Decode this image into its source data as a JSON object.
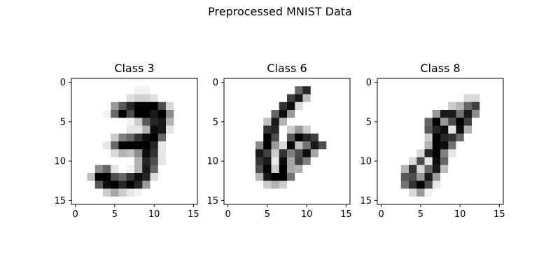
{
  "chart_data": {
    "type": "heatmap",
    "title": "Preprocessed MNIST Data",
    "colormap": "gray_r",
    "value_range": [
      0,
      1
    ],
    "grid": false,
    "xticks": [
      0,
      5,
      10,
      15
    ],
    "yticks": [
      0,
      5,
      10,
      15
    ],
    "panels": [
      {
        "title": "Class 3",
        "pixels": [
          [
            0,
            0,
            0,
            0,
            0,
            0,
            0,
            0,
            0,
            0,
            0,
            0,
            0,
            0,
            0,
            0
          ],
          [
            0,
            0,
            0,
            0,
            0,
            0,
            0,
            0,
            0.05,
            0.05,
            0,
            0,
            0,
            0,
            0,
            0
          ],
          [
            0,
            0,
            0,
            0,
            0,
            0,
            0,
            0.12,
            0.18,
            0.18,
            0.12,
            0,
            0,
            0,
            0,
            0
          ],
          [
            0,
            0,
            0,
            0,
            0,
            0.4,
            0.65,
            0.85,
            1,
            1,
            1,
            0.7,
            0.15,
            0,
            0,
            0
          ],
          [
            0,
            0,
            0,
            0,
            0.05,
            0.6,
            1,
            0.7,
            1,
            1,
            0.9,
            1,
            0.45,
            0,
            0,
            0
          ],
          [
            0,
            0,
            0,
            0,
            0,
            0,
            0,
            0.05,
            0.2,
            0.65,
            0.85,
            0.9,
            0.3,
            0,
            0,
            0
          ],
          [
            0,
            0,
            0,
            0,
            0,
            0,
            0,
            0.1,
            0.1,
            0.3,
            0.95,
            0.9,
            0.1,
            0,
            0,
            0
          ],
          [
            0,
            0,
            0,
            0,
            0,
            0.2,
            0.5,
            0.6,
            0.8,
            0.95,
            1,
            0.6,
            0,
            0,
            0,
            0
          ],
          [
            0,
            0,
            0,
            0,
            0.1,
            0.6,
            1,
            1,
            1,
            1,
            0.85,
            0.1,
            0,
            0,
            0,
            0
          ],
          [
            0,
            0,
            0,
            0,
            0,
            0.15,
            0.3,
            0.25,
            0.45,
            0.95,
            0.8,
            0.1,
            0,
            0,
            0,
            0
          ],
          [
            0,
            0,
            0,
            0,
            0,
            0,
            0,
            0,
            0.3,
            0.85,
            0.7,
            0.1,
            0,
            0,
            0,
            0
          ],
          [
            0,
            0,
            0,
            0.45,
            0.6,
            0.1,
            0,
            0.05,
            0.3,
            0.9,
            0.6,
            0,
            0,
            0,
            0,
            0
          ],
          [
            0,
            0,
            0.25,
            1,
            1,
            0.7,
            0.6,
            0.8,
            0.95,
            0.85,
            0.15,
            0,
            0,
            0,
            0,
            0
          ],
          [
            0,
            0,
            0,
            0.65,
            0.95,
            1,
            0.85,
            1,
            0.85,
            0.4,
            0,
            0,
            0,
            0,
            0,
            0
          ],
          [
            0,
            0,
            0,
            0,
            0.2,
            0.35,
            0.2,
            0.1,
            0.05,
            0,
            0,
            0,
            0,
            0,
            0,
            0
          ],
          [
            0,
            0,
            0,
            0,
            0,
            0,
            0,
            0,
            0,
            0,
            0,
            0,
            0,
            0,
            0,
            0
          ]
        ]
      },
      {
        "title": "Class 6",
        "pixels": [
          [
            0,
            0,
            0,
            0,
            0,
            0,
            0,
            0,
            0,
            0,
            0,
            0,
            0,
            0,
            0,
            0
          ],
          [
            0,
            0,
            0,
            0,
            0,
            0,
            0,
            0,
            0,
            0.6,
            0.85,
            0,
            0,
            0,
            0,
            0
          ],
          [
            0,
            0,
            0,
            0,
            0,
            0,
            0,
            0,
            0.75,
            0.9,
            0.25,
            0,
            0,
            0,
            0,
            0
          ],
          [
            0,
            0,
            0,
            0,
            0,
            0,
            0,
            0.8,
            0.95,
            0.15,
            0,
            0,
            0,
            0,
            0,
            0
          ],
          [
            0,
            0,
            0,
            0,
            0,
            0,
            0.6,
            0.95,
            0.4,
            0,
            0,
            0,
            0,
            0,
            0,
            0
          ],
          [
            0,
            0,
            0,
            0,
            0,
            0.25,
            0.9,
            0.3,
            0,
            0,
            0,
            0,
            0,
            0,
            0,
            0
          ],
          [
            0,
            0,
            0,
            0,
            0,
            0.8,
            0.85,
            0,
            0.2,
            0.4,
            0.2,
            0,
            0,
            0,
            0,
            0
          ],
          [
            0,
            0,
            0,
            0,
            0,
            1,
            0.7,
            0,
            0.65,
            1,
            0.85,
            0.75,
            0,
            0,
            0,
            0
          ],
          [
            0,
            0,
            0,
            0,
            0.45,
            1,
            0.4,
            0.15,
            1,
            0.25,
            0.55,
            0.9,
            0.7,
            0,
            0,
            0
          ],
          [
            0,
            0,
            0,
            0,
            0.9,
            0.75,
            0.2,
            0.8,
            0.5,
            0.7,
            0.95,
            0.35,
            0,
            0,
            0,
            0
          ],
          [
            0,
            0,
            0,
            0,
            0.8,
            0.9,
            0.1,
            0.95,
            0.35,
            0.75,
            0.5,
            0,
            0,
            0,
            0,
            0
          ],
          [
            0,
            0,
            0,
            0,
            0.7,
            1,
            0.2,
            1,
            0.35,
            0.3,
            0,
            0,
            0,
            0,
            0,
            0
          ],
          [
            0,
            0,
            0,
            0,
            0.3,
            0.9,
            1,
            1,
            0.55,
            0,
            0,
            0,
            0,
            0,
            0,
            0
          ],
          [
            0,
            0,
            0,
            0,
            0,
            0.2,
            0.3,
            0.2,
            0,
            0,
            0,
            0,
            0,
            0,
            0,
            0
          ],
          [
            0,
            0,
            0,
            0,
            0,
            0,
            0,
            0,
            0,
            0,
            0,
            0,
            0,
            0,
            0,
            0
          ],
          [
            0,
            0,
            0,
            0,
            0,
            0,
            0,
            0,
            0,
            0,
            0,
            0,
            0,
            0,
            0,
            0
          ]
        ]
      },
      {
        "title": "Class 8",
        "pixels": [
          [
            0,
            0,
            0,
            0,
            0,
            0,
            0,
            0,
            0,
            0,
            0,
            0,
            0,
            0,
            0,
            0
          ],
          [
            0,
            0,
            0,
            0,
            0,
            0,
            0,
            0,
            0,
            0,
            0,
            0,
            0,
            0,
            0,
            0
          ],
          [
            0,
            0,
            0,
            0,
            0,
            0,
            0,
            0,
            0,
            0,
            0,
            0.15,
            0.15,
            0,
            0,
            0
          ],
          [
            0,
            0,
            0,
            0,
            0,
            0,
            0,
            0,
            0,
            0.2,
            0.3,
            0.6,
            0.75,
            0,
            0,
            0
          ],
          [
            0,
            0,
            0,
            0,
            0,
            0,
            0,
            0.4,
            0.9,
            0.9,
            0.55,
            0.9,
            0.45,
            0,
            0,
            0
          ],
          [
            0,
            0,
            0,
            0,
            0,
            0,
            0.6,
            1,
            0.4,
            0.7,
            1,
            0.75,
            0,
            0,
            0,
            0
          ],
          [
            0,
            0,
            0,
            0,
            0,
            0,
            0.65,
            0.85,
            0.95,
            0.1,
            0.95,
            0.3,
            0,
            0,
            0,
            0
          ],
          [
            0,
            0,
            0,
            0,
            0,
            0,
            0.2,
            1,
            0.85,
            0.8,
            0.6,
            0,
            0,
            0,
            0,
            0
          ],
          [
            0,
            0,
            0,
            0,
            0,
            0,
            0.3,
            1,
            0.95,
            0.55,
            0,
            0,
            0,
            0,
            0,
            0
          ],
          [
            0,
            0,
            0,
            0,
            0,
            0.15,
            0.85,
            1,
            0.5,
            0.1,
            0,
            0,
            0,
            0,
            0,
            0
          ],
          [
            0,
            0,
            0,
            0,
            0.15,
            0.7,
            0.1,
            0.95,
            0.6,
            0,
            0,
            0,
            0,
            0,
            0,
            0
          ],
          [
            0,
            0,
            0,
            0.3,
            0.8,
            0.15,
            0.6,
            0.9,
            0.25,
            0,
            0,
            0,
            0,
            0,
            0,
            0
          ],
          [
            0,
            0,
            0,
            0.65,
            0.7,
            0.4,
            0.9,
            0.4,
            0,
            0,
            0,
            0,
            0,
            0,
            0,
            0
          ],
          [
            0,
            0,
            0,
            0.55,
            0.8,
            1,
            0.7,
            0.1,
            0,
            0,
            0,
            0,
            0,
            0,
            0,
            0
          ],
          [
            0,
            0,
            0,
            0,
            0.15,
            0.4,
            0.05,
            0,
            0,
            0,
            0,
            0,
            0,
            0,
            0,
            0
          ],
          [
            0,
            0,
            0,
            0,
            0,
            0,
            0,
            0,
            0,
            0,
            0,
            0,
            0,
            0,
            0,
            0
          ]
        ]
      }
    ]
  }
}
